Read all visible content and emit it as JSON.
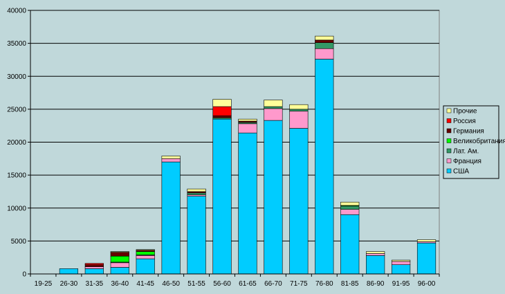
{
  "chart_data": {
    "type": "bar",
    "stacked": true,
    "categories": [
      "19-25",
      "26-30",
      "31-35",
      "36-40",
      "41-45",
      "46-50",
      "51-55",
      "56-60",
      "61-65",
      "66-70",
      "71-75",
      "76-80",
      "81-85",
      "86-90",
      "91-95",
      "96-00"
    ],
    "ylim": [
      0,
      40000
    ],
    "yticks": [
      0,
      5000,
      10000,
      15000,
      20000,
      25000,
      30000,
      35000,
      40000
    ],
    "grid": true,
    "legend_position": "right",
    "series": [
      {
        "name": "США",
        "color": "#00ccff",
        "values": [
          0,
          800,
          800,
          1000,
          2300,
          17000,
          11800,
          23500,
          21400,
          23300,
          22100,
          32600,
          9000,
          2800,
          1400,
          4700
        ]
      },
      {
        "name": "Франция",
        "color": "#ff99cc",
        "values": [
          0,
          0,
          300,
          700,
          500,
          500,
          200,
          0,
          1400,
          1800,
          2600,
          1600,
          800,
          300,
          500,
          200
        ]
      },
      {
        "name": "Лат. Ам.",
        "color": "#339966",
        "values": [
          0,
          0,
          0,
          100,
          100,
          0,
          300,
          200,
          200,
          300,
          300,
          900,
          500,
          0,
          0,
          0
        ]
      },
      {
        "name": "Великобритания",
        "color": "#00ff00",
        "values": [
          0,
          0,
          0,
          900,
          500,
          0,
          0,
          0,
          0,
          0,
          0,
          0,
          100,
          0,
          0,
          0
        ]
      },
      {
        "name": "Германия",
        "color": "#660000",
        "values": [
          0,
          0,
          300,
          600,
          200,
          0,
          200,
          300,
          200,
          0,
          0,
          400,
          0,
          0,
          0,
          0
        ]
      },
      {
        "name": "Россия",
        "color": "#ff0000",
        "values": [
          0,
          0,
          200,
          0,
          0,
          0,
          0,
          1400,
          0,
          0,
          0,
          0,
          0,
          0,
          0,
          0
        ]
      },
      {
        "name": "Прочие",
        "color": "#ffff99",
        "values": [
          0,
          0,
          0,
          100,
          100,
          400,
          400,
          1100,
          300,
          1000,
          700,
          600,
          500,
          300,
          200,
          300
        ]
      }
    ]
  }
}
